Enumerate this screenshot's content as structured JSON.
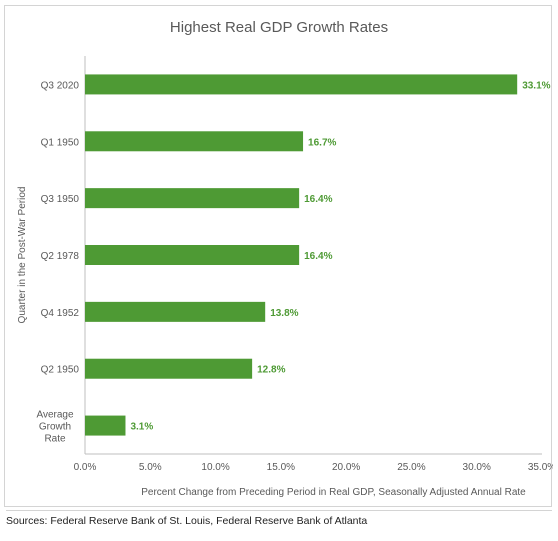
{
  "chart_data": {
    "type": "bar",
    "orientation": "horizontal",
    "title": "Highest Real GDP Growth Rates",
    "xlabel": "Percent Change from Preceding Period in Real GDP, Seasonally Adjusted Annual Rate",
    "ylabel": "Quarter in the Post-War Period",
    "categories": [
      "Q3 2020",
      "Q1 1950",
      "Q3 1950",
      "Q2 1978",
      "Q4 1952",
      "Q2 1950",
      "Average Growth Rate"
    ],
    "values": [
      33.1,
      16.7,
      16.4,
      16.4,
      13.8,
      12.8,
      3.1
    ],
    "data_labels": [
      "33.1%",
      "16.7%",
      "16.4%",
      "16.4%",
      "13.8%",
      "12.8%",
      "3.1%"
    ],
    "xlim": [
      0,
      35
    ],
    "xticks": [
      0,
      5,
      10,
      15,
      20,
      25,
      30,
      35
    ],
    "xtick_labels": [
      "0.0%",
      "5.0%",
      "10.0%",
      "15.0%",
      "20.0%",
      "25.0%",
      "30.0%",
      "35.0%"
    ],
    "grid": false,
    "legend": "none",
    "bar_color": "#4e9a34",
    "label_color": "#4e9a34"
  },
  "sources": "Sources: Federal Reserve Bank of St. Louis, Federal Reserve Bank of Atlanta"
}
